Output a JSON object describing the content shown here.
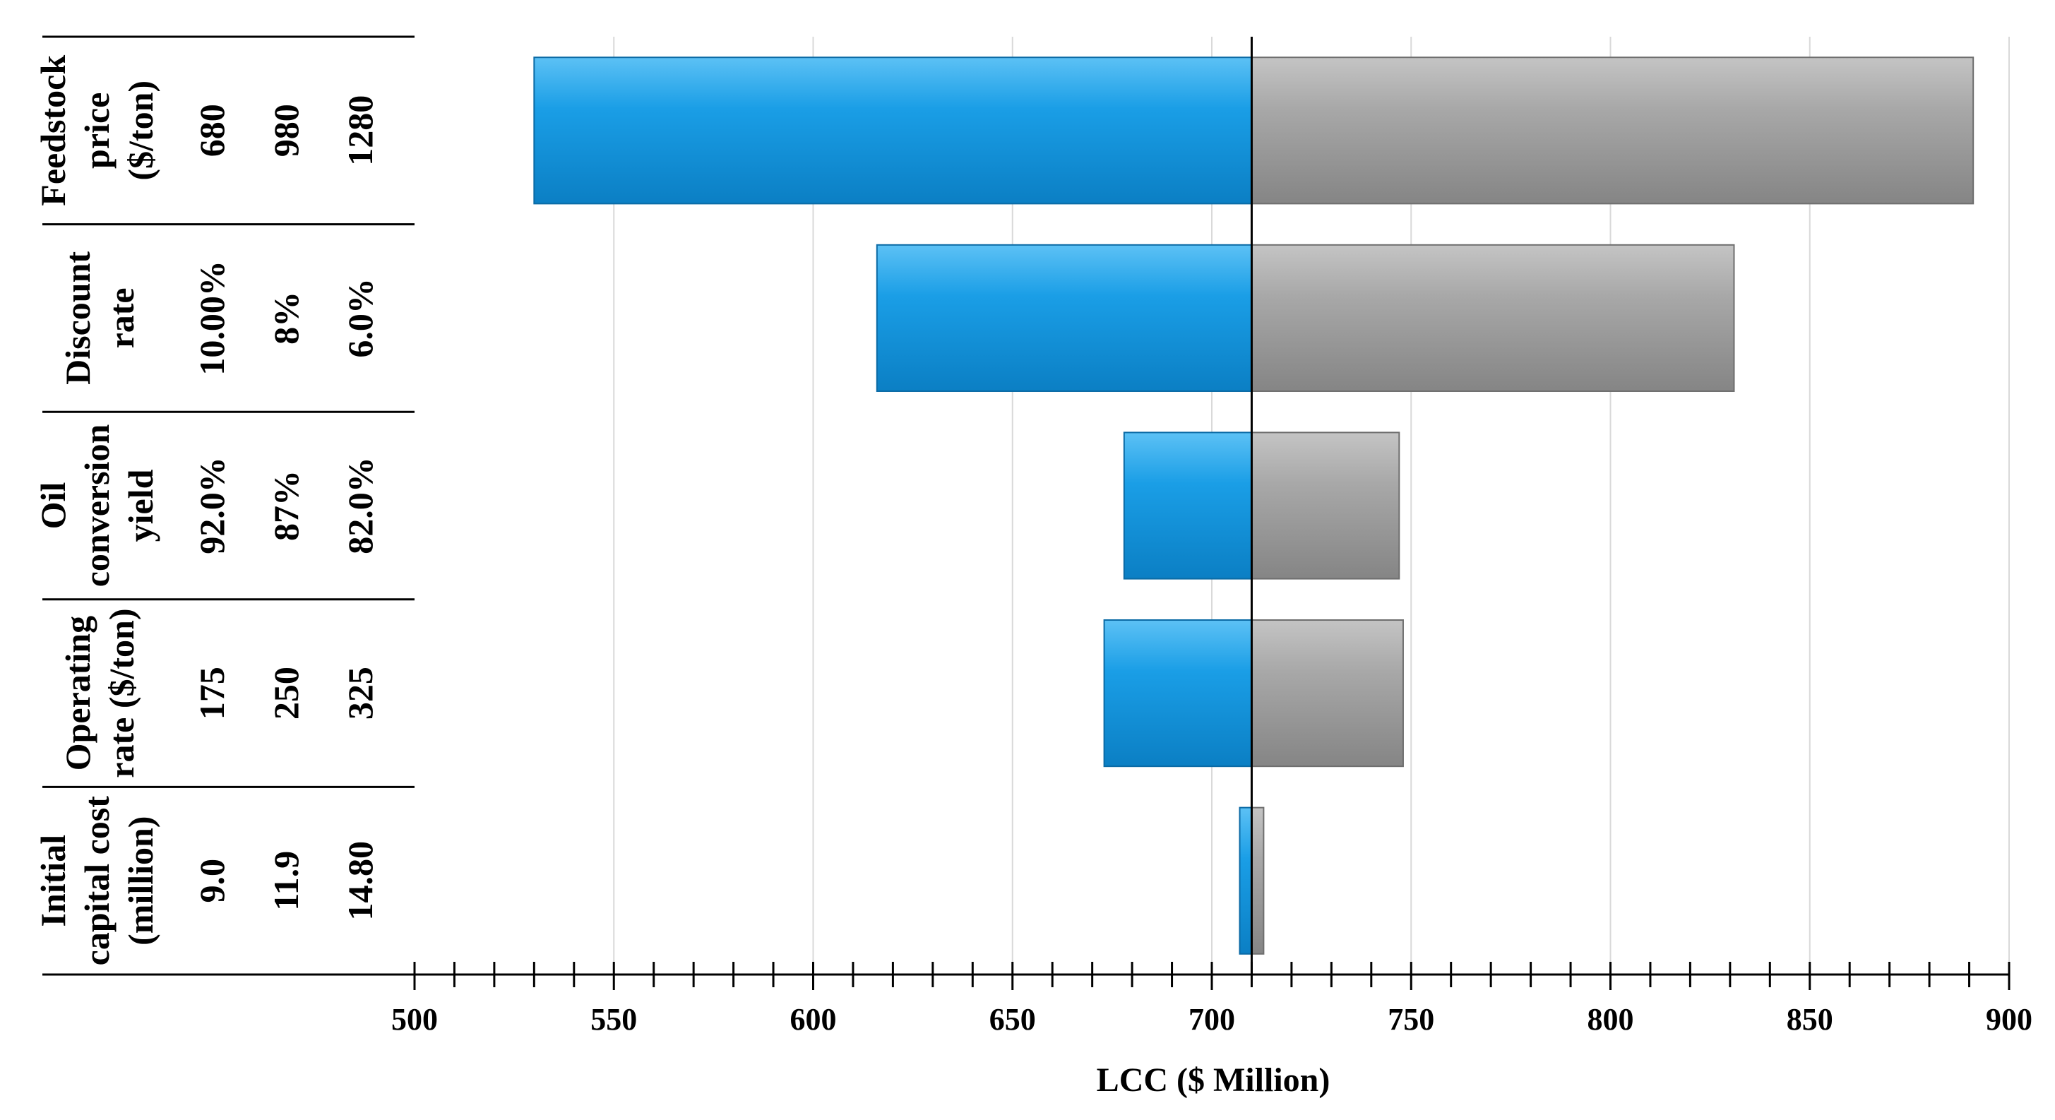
{
  "chart_data": {
    "type": "bar",
    "orientation": "horizontal",
    "subtype": "tornado",
    "baseline": 710,
    "xlim": [
      500,
      900
    ],
    "xticks": [
      500,
      550,
      600,
      650,
      700,
      750,
      800,
      850,
      900
    ],
    "xlabel": "LCC ($ Million)",
    "grid": true,
    "colors": {
      "low_bar": "#1a9ee6",
      "high_bar": "#a6a6a6"
    },
    "rows": [
      {
        "label": [
          "Feedstock",
          "price",
          "($/ton)"
        ],
        "values_text": [
          "680",
          "980",
          "1280"
        ],
        "low": 530,
        "high": 891
      },
      {
        "label": [
          "Discount",
          "rate"
        ],
        "values_text": [
          "10.00%",
          "8%",
          "6.0%"
        ],
        "low": 616,
        "high": 831
      },
      {
        "label": [
          "Oil",
          "conversion",
          "yield"
        ],
        "values_text": [
          "92.0%",
          "87%",
          "82.0%"
        ],
        "low": 678,
        "high": 747
      },
      {
        "label": [
          "Operating",
          "rate ($/ton)"
        ],
        "values_text": [
          "175",
          "250",
          "325"
        ],
        "low": 673,
        "high": 748
      },
      {
        "label": [
          "Initial",
          "capital cost",
          "(million)"
        ],
        "values_text": [
          "9.0",
          "11.9",
          "14.80"
        ],
        "low": 707,
        "high": 713
      }
    ]
  }
}
